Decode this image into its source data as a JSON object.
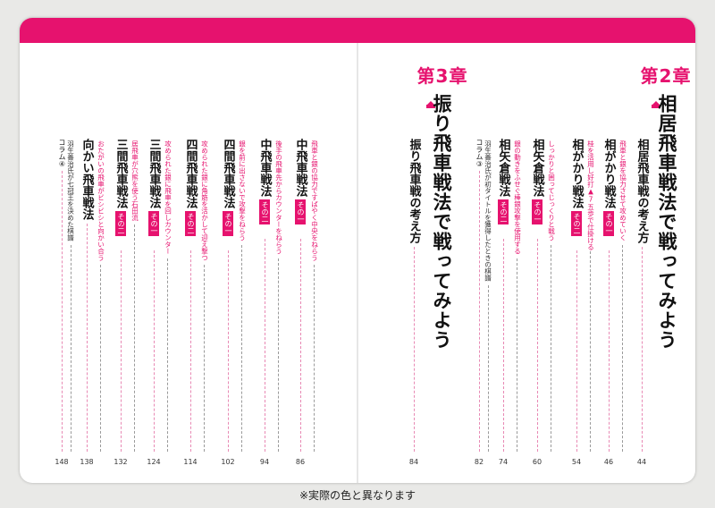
{
  "colors": {
    "accent": "#e6126e",
    "text": "#111111",
    "leader_pink": "#e889b4",
    "leader_gray": "#9a9a9a"
  },
  "chapter2": {
    "number": "第2章",
    "title": "相居飛車戦法で戦ってみよう",
    "entries": [
      {
        "title": "相居飛車戦の考え方",
        "sub": "",
        "tag": "",
        "page": "44"
      },
      {
        "title": "相がかり戦法",
        "sub": "飛車と銀を協力させて攻めていく",
        "tag": "その一",
        "page": "46"
      },
      {
        "title": "相がかり戦法",
        "sub": "桂を活用し好打▲7五歩で仕掛ける",
        "tag": "その二",
        "page": "54"
      },
      {
        "title": "相矢倉戦法",
        "sub": "しっかりと囲ってじっくりと戦う",
        "tag": "その一",
        "page": "60"
      },
      {
        "title": "相矢倉戦法",
        "sub": "銀の動きをふせぐ棒銀攻撃を使用する",
        "tag": "その二",
        "page": "74"
      },
      {
        "title": "コラム③",
        "sub": "羽生善治氏が初タイトルを獲得したときの棋譜",
        "tag": "",
        "page": "82"
      }
    ]
  },
  "chapter3": {
    "number": "第3章",
    "title": "振り飛車戦法で戦ってみよう",
    "entries": [
      {
        "title": "振り飛車戦の考え方",
        "sub": "",
        "tag": "",
        "page": "84"
      },
      {
        "title": "中飛車戦法",
        "sub": "飛車と銀の協力ですばやく中央をねらう",
        "tag": "その一",
        "page": "86"
      },
      {
        "title": "中飛車戦法",
        "sub": "後手の飛車先からカウンターをねらう",
        "tag": "その二",
        "page": "94"
      },
      {
        "title": "四間飛車戦法",
        "sub": "銀を前に出さないで攻撃をねらう",
        "tag": "その一",
        "page": "102"
      },
      {
        "title": "四間飛車戦法",
        "sub": "攻められた銀に角筋を活かして迎え撃つ",
        "tag": "その二",
        "page": "114"
      },
      {
        "title": "三間飛車戦法",
        "sub": "攻められた銀に飛車を回しカウンター",
        "tag": "その一",
        "page": "124"
      },
      {
        "title": "三間飛車戦法",
        "sub": "居飛車が穴熊を使う石田流",
        "tag": "その二",
        "page": "132"
      },
      {
        "title": "向かい飛車戦法",
        "sub": "おたがいの飛車がビシビシと向かい合う",
        "tag": "",
        "page": "138"
      },
      {
        "title": "コラム④",
        "sub": "羽生善治氏が七冠王を決めた棋譜",
        "tag": "",
        "page": "148"
      }
    ]
  },
  "note": "※実際の色と異なります"
}
